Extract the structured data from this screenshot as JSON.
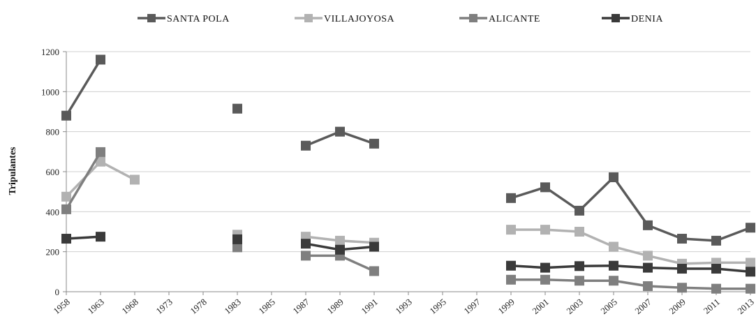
{
  "chart_data": {
    "type": "line",
    "title": "",
    "xlabel": "",
    "ylabel": "Tripulantes",
    "ylim": [
      0,
      1200
    ],
    "yticks": [
      0,
      200,
      400,
      600,
      800,
      1000,
      1200
    ],
    "grid": "horizontal",
    "legend_position": "top",
    "categories": [
      "1958",
      "1963",
      "1968",
      "1973",
      "1978",
      "1983",
      "1985",
      "1987",
      "1989",
      "1991",
      "1993",
      "1995",
      "1997",
      "1999",
      "2001",
      "2003",
      "2005",
      "2007",
      "2009",
      "2011",
      "2013"
    ],
    "series": [
      {
        "name": "SANTA POLA",
        "color": "#5a5a5a",
        "values": [
          880,
          1160,
          null,
          null,
          null,
          915,
          null,
          730,
          800,
          740,
          null,
          null,
          null,
          468,
          522,
          405,
          572,
          332,
          265,
          255,
          320
        ]
      },
      {
        "name": "VILLAJOYOSA",
        "color": "#b2b2b2",
        "values": [
          475,
          650,
          560,
          null,
          null,
          285,
          null,
          275,
          255,
          245,
          null,
          null,
          null,
          310,
          310,
          300,
          225,
          180,
          140,
          145,
          145
        ]
      },
      {
        "name": "ALICANTE",
        "color": "#7f7f7f",
        "values": [
          412,
          698,
          null,
          null,
          null,
          222,
          null,
          180,
          180,
          103,
          null,
          null,
          null,
          60,
          60,
          55,
          55,
          28,
          20,
          15,
          15
        ]
      },
      {
        "name": "DENIA",
        "color": "#3a3a3a",
        "values": [
          265,
          275,
          null,
          null,
          null,
          262,
          null,
          240,
          210,
          225,
          null,
          null,
          null,
          130,
          120,
          128,
          130,
          120,
          115,
          115,
          100
        ]
      }
    ]
  }
}
